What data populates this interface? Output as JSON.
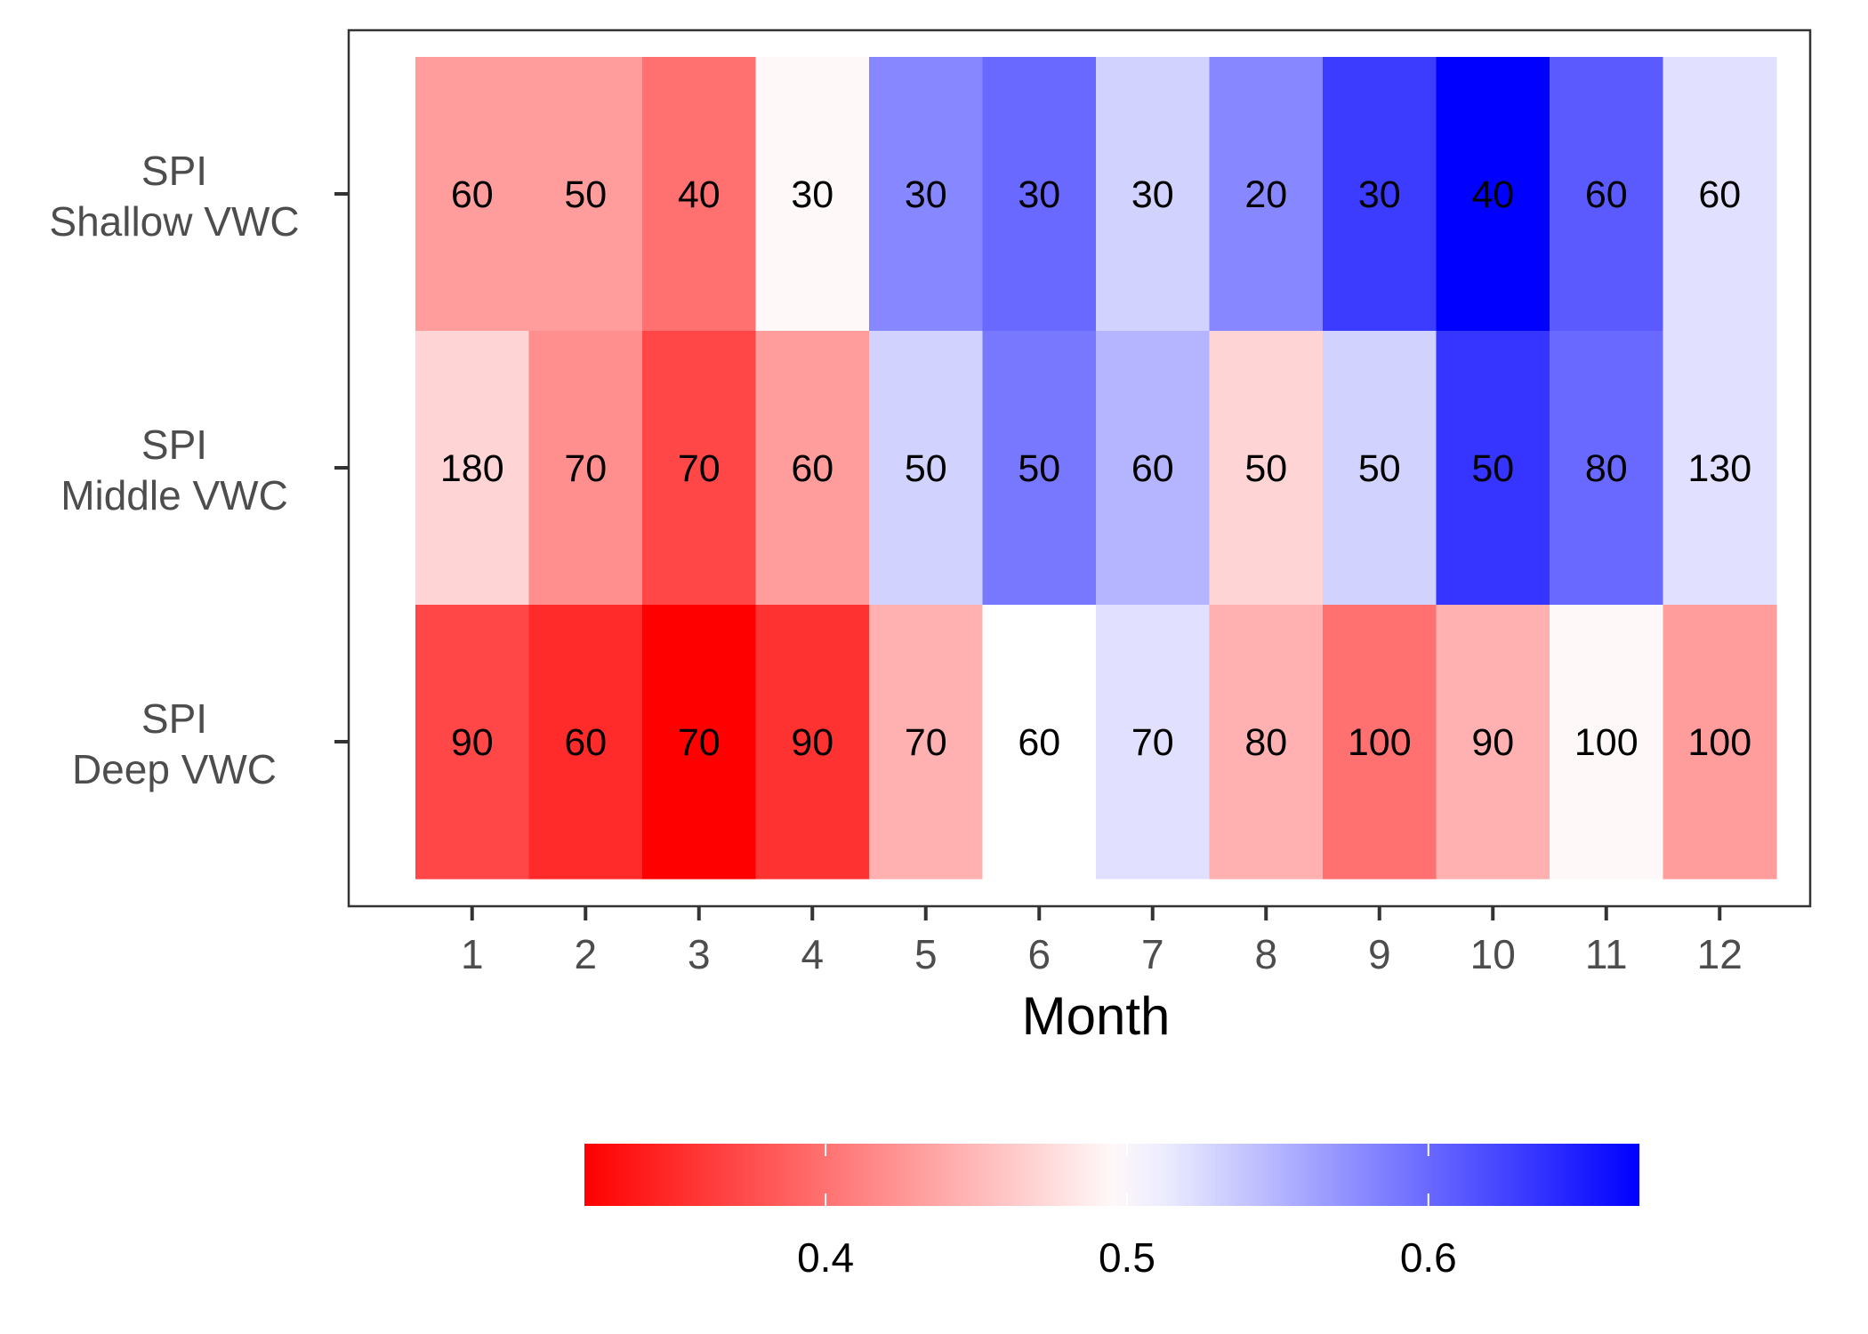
{
  "chart_data": {
    "type": "heatmap",
    "xlabel": "Month",
    "x": [
      "1",
      "2",
      "3",
      "4",
      "5",
      "6",
      "7",
      "8",
      "9",
      "10",
      "11",
      "12"
    ],
    "rows": [
      {
        "label_line1": "SPI",
        "label_line2": "Shallow VWC",
        "color_values": [
          0.43,
          0.43,
          0.4,
          0.495,
          0.58,
          0.6,
          0.53,
          0.58,
          0.63,
          0.67,
          0.61,
          0.52
        ],
        "cell_labels": [
          "60",
          "50",
          "40",
          "30",
          "30",
          "30",
          "30",
          "20",
          "30",
          "40",
          "60",
          "60"
        ]
      },
      {
        "label_line1": "SPI",
        "label_line2": "Middle VWC",
        "color_values": [
          0.47,
          0.42,
          0.37,
          0.43,
          0.53,
          0.59,
          0.55,
          0.47,
          0.53,
          0.635,
          0.6,
          0.52
        ],
        "cell_labels": [
          "180",
          "70",
          "70",
          "60",
          "50",
          "50",
          "60",
          "50",
          "50",
          "50",
          "80",
          "130"
        ]
      },
      {
        "label_line1": "SPI",
        "label_line2": "Deep VWC",
        "color_values": [
          0.37,
          0.35,
          0.32,
          0.355,
          0.445,
          0.5,
          0.52,
          0.445,
          0.4,
          0.445,
          0.495,
          0.43
        ],
        "cell_labels": [
          "90",
          "60",
          "70",
          "90",
          "70",
          "60",
          "70",
          "80",
          "100",
          "90",
          "100",
          "100"
        ]
      }
    ],
    "colorbar": {
      "min": 0.32,
      "mid": 0.5,
      "max": 0.67,
      "low_color": "#ff0000",
      "mid_color": "#ffffff",
      "high_color": "#0000ff",
      "ticks": [
        "0.4",
        "0.5",
        "0.6"
      ],
      "tick_values": [
        0.4,
        0.5,
        0.6
      ]
    },
    "legend_position": "bottom"
  }
}
